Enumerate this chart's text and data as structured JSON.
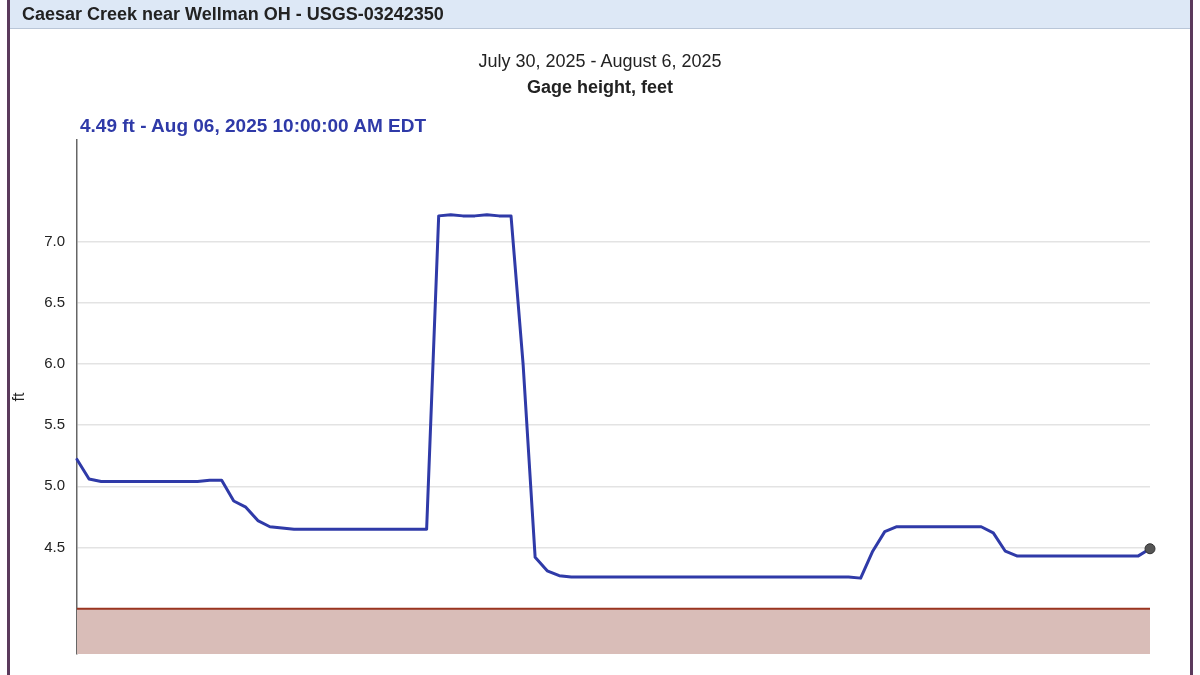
{
  "chart_data": {
    "type": "line",
    "title": "Caesar Creek near Wellman OH - USGS-03242350",
    "subtitle": "July 30, 2025 - August 6, 2025",
    "ylabel": "ft",
    "annotations": [
      "Gage height, feet",
      "4.49 ft - Aug 06, 2025 10:00:00 AM EDT"
    ],
    "categories": [
      null,
      null,
      null,
      null,
      null,
      null,
      null,
      null,
      null,
      null,
      null,
      null,
      null,
      null,
      null,
      null,
      null,
      null,
      null,
      null,
      null,
      null,
      null,
      null,
      null,
      null,
      null,
      null,
      null,
      null,
      null,
      null,
      null,
      null,
      null,
      null,
      null,
      null,
      null,
      null,
      null,
      null,
      null,
      null,
      null,
      null,
      null,
      null,
      null,
      null,
      null,
      null,
      null,
      null,
      null,
      null,
      null,
      null,
      null,
      null,
      null,
      null,
      null,
      null,
      null,
      null,
      null,
      null,
      null,
      null,
      null,
      null,
      null,
      null,
      null,
      null,
      null,
      null,
      null,
      null,
      null,
      null,
      null,
      null,
      null,
      null,
      null,
      null,
      null,
      null
    ],
    "series": [
      {
        "color": "#2f3aa8",
        "values": [
          5.22,
          5.06,
          5.04,
          5.04,
          5.04,
          5.04,
          5.04,
          5.04,
          5.04,
          5.04,
          5.04,
          5.05,
          5.05,
          4.88,
          4.83,
          4.72,
          4.67,
          4.66,
          4.65,
          4.65,
          4.65,
          4.65,
          4.65,
          4.65,
          4.65,
          4.65,
          4.65,
          4.65,
          4.65,
          4.65,
          7.21,
          7.22,
          7.21,
          7.21,
          7.22,
          7.21,
          7.21,
          6.0,
          4.42,
          4.31,
          4.27,
          4.26,
          4.26,
          4.26,
          4.26,
          4.26,
          4.26,
          4.26,
          4.26,
          4.26,
          4.26,
          4.26,
          4.26,
          4.26,
          4.26,
          4.26,
          4.26,
          4.26,
          4.26,
          4.26,
          4.26,
          4.26,
          4.26,
          4.26,
          4.26,
          4.25,
          4.47,
          4.63,
          4.67,
          4.67,
          4.67,
          4.67,
          4.67,
          4.67,
          4.67,
          4.67,
          4.62,
          4.47,
          4.43,
          4.43,
          4.43,
          4.43,
          4.43,
          4.43,
          4.43,
          4.43,
          4.43,
          4.43,
          4.43,
          4.49
        ]
      }
    ],
    "ylim": [
      3.63,
      7.83
    ],
    "yticks": [
      {
        "value": 4.5,
        "label": "4.5"
      },
      {
        "value": 5,
        "label": "5.0"
      },
      {
        "value": 5.5,
        "label": "5.5"
      },
      {
        "value": 6,
        "label": "6.0"
      },
      {
        "value": 6.5,
        "label": "6.5"
      },
      {
        "value": 7,
        "label": "7.0"
      }
    ],
    "tick_labels": "y",
    "grid": "y",
    "legend": false,
    "marker": "none",
    "line_style": "solid",
    "bands": [
      {
        "axis": "y",
        "from": 3.63,
        "to": 4.0,
        "color": "#d9bdb8"
      }
    ],
    "ref_lines": [
      {
        "axis": "y",
        "value": 4.0,
        "color": "#9a3520"
      }
    ]
  }
}
